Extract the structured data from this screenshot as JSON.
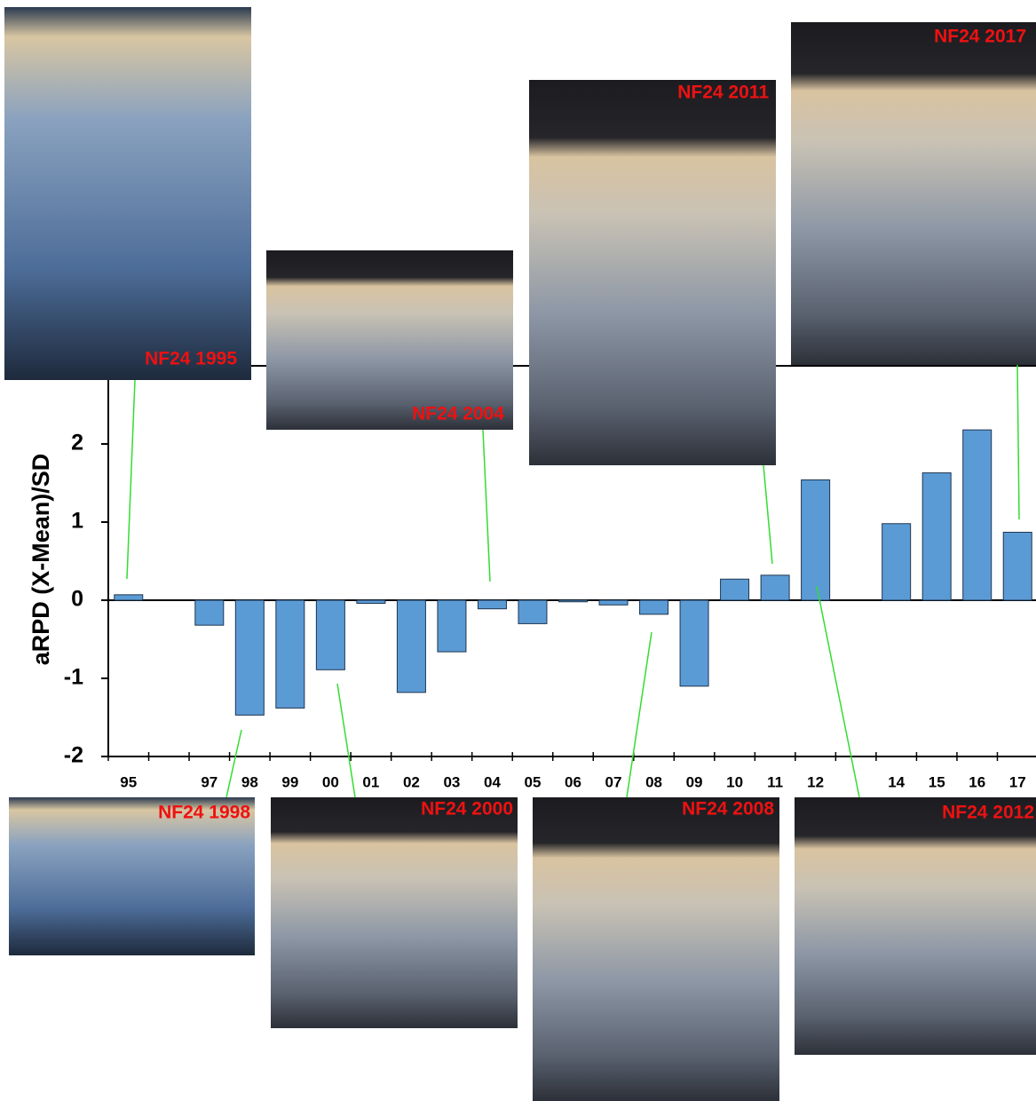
{
  "chart_data": {
    "type": "bar",
    "y_label": "aRPD (X-Mean)/SD",
    "categories": [
      "95",
      null,
      "97",
      "98",
      "99",
      "00",
      "01",
      "02",
      "03",
      "04",
      "05",
      "06",
      "07",
      "08",
      "09",
      "10",
      "11",
      "12",
      null,
      "14",
      "15",
      "16",
      "17"
    ],
    "values": [
      0.07,
      null,
      -0.32,
      -1.47,
      -1.38,
      -0.89,
      -0.04,
      -1.18,
      -0.66,
      -0.11,
      -0.3,
      -0.02,
      -0.06,
      -0.18,
      -1.1,
      0.27,
      0.32,
      1.54,
      null,
      0.98,
      1.63,
      2.18,
      0.87
    ],
    "color": "#5b9bd5",
    "ylim": [
      -2,
      3
    ],
    "yticks": [
      -2,
      -1,
      0,
      1,
      2
    ],
    "annotations": [
      "NF24 1995",
      "NF24 2004",
      "NF24 2011",
      "NF24 2017",
      "NF24 1998",
      "NF24 2000",
      "NF24 2008",
      "NF24 2012"
    ]
  }
}
